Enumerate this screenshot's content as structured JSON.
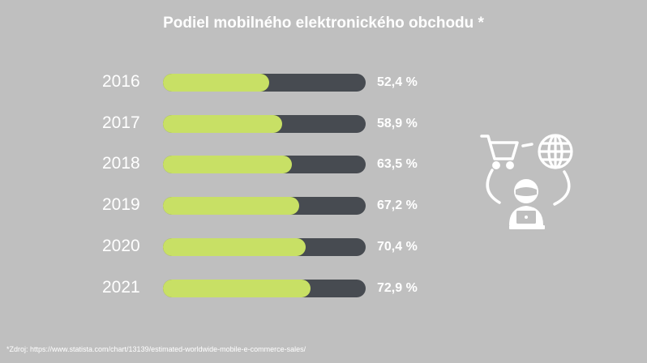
{
  "chart_data": {
    "type": "bar",
    "orientation": "horizontal",
    "title": "Podiel mobilného elektronického obchodu *",
    "categories": [
      "2016",
      "2017",
      "2018",
      "2019",
      "2020",
      "2021"
    ],
    "values": [
      52.4,
      58.9,
      63.5,
      67.2,
      70.4,
      72.9
    ],
    "value_labels": [
      "52,4 %",
      "58,9 %",
      "63,5 %",
      "67,2 %",
      "70,4 %",
      "72,9 %"
    ],
    "xlim": [
      0,
      100
    ],
    "xlabel": "",
    "ylabel": "",
    "grid": false,
    "colors": {
      "fill": "#c8e065",
      "track": "#474b51",
      "background": "#bfbfbf",
      "text": "#ffffff"
    }
  },
  "source_note": "*Zdroj: https://www.statista.com/chart/13139/estimated-worldwide-mobile-e-commerce-sales/",
  "illustration": {
    "icons": [
      "shopping-cart-icon",
      "globe-icon",
      "person-laptop-icon"
    ]
  }
}
